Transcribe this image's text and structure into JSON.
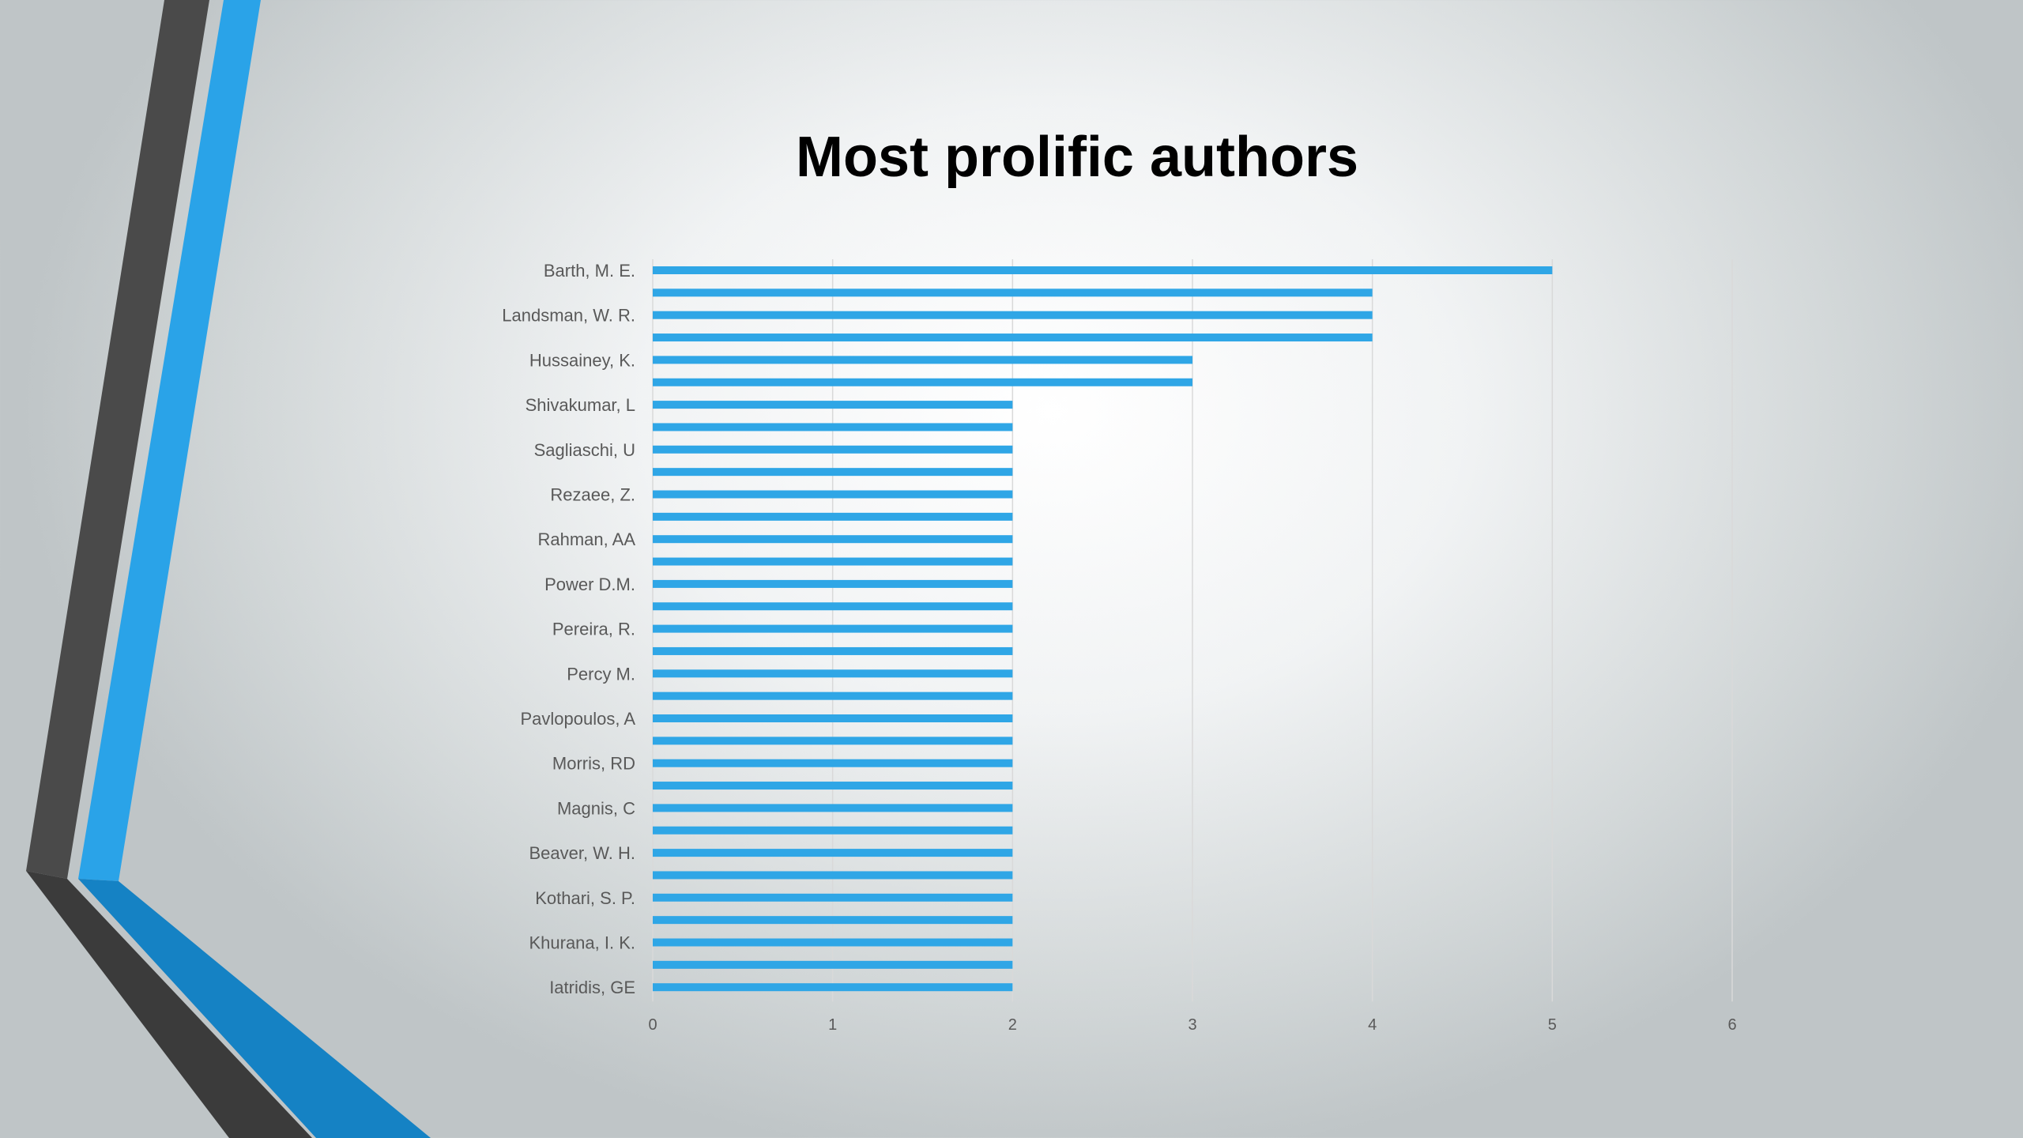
{
  "slide": {
    "title": "Most prolific authors",
    "colors": {
      "bar": "#2fa6e6",
      "accent_dark": "#4a4a4a",
      "accent_blue": "#2aa3e8",
      "accent_blue_deep": "#1582c4"
    }
  },
  "chart_data": {
    "type": "bar",
    "orientation": "horizontal",
    "title": "Most prolific authors",
    "xlabel": "",
    "ylabel": "",
    "xlim": [
      0,
      6
    ],
    "x_ticks": [
      "0",
      "1",
      "2",
      "3",
      "4",
      "5",
      "6"
    ],
    "grid": "vertical",
    "legend": "none",
    "categories": [
      "Barth, M. E.",
      "",
      "Landsman, W. R.",
      "",
      "Hussainey, K.",
      "",
      "Shivakumar, L",
      "",
      "Sagliaschi, U",
      "",
      "Rezaee, Z.",
      "",
      "Rahman, AA",
      "",
      "Power D.M.",
      "",
      "Pereira, R.",
      "",
      "Percy M.",
      "",
      "Pavlopoulos, A",
      "",
      "Morris, RD",
      "",
      "Magnis, C",
      "",
      "Beaver, W. H.",
      "",
      "Kothari, S. P.",
      "",
      "Khurana, I. K.",
      "",
      "Iatridis, GE"
    ],
    "values": [
      5,
      4,
      4,
      4,
      3,
      3,
      2,
      2,
      2,
      2,
      2,
      2,
      2,
      2,
      2,
      2,
      2,
      2,
      2,
      2,
      2,
      2,
      2,
      2,
      2,
      2,
      2,
      2,
      2,
      2,
      2,
      2,
      2
    ]
  }
}
